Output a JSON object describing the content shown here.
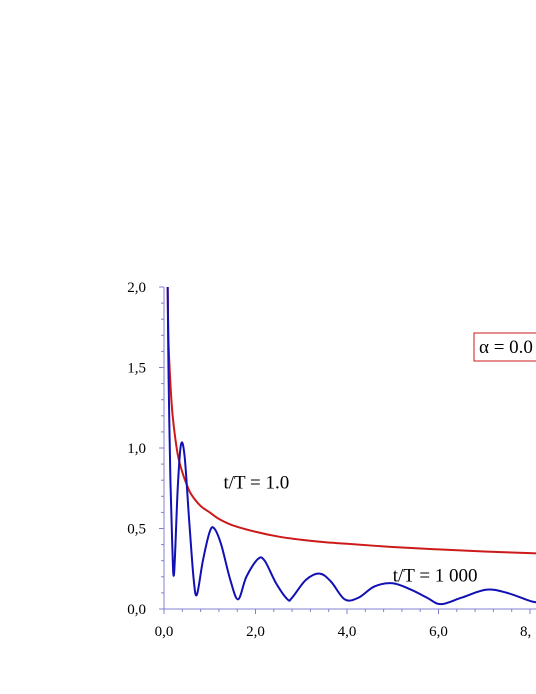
{
  "chart_data": {
    "type": "line",
    "title": "",
    "xlabel": "",
    "ylabel": "",
    "xlim": [
      0,
      8
    ],
    "ylim": [
      0,
      2
    ],
    "x_ticks": [
      "0,0",
      "2,0",
      "4,0",
      "6,0",
      "8,"
    ],
    "y_ticks": [
      "0,0",
      "0,5",
      "1,0",
      "1,5",
      "2,0"
    ],
    "grid": false,
    "legend_box": {
      "text": "α = 0.0",
      "border_color": "#cc1a1a"
    },
    "series": [
      {
        "color": "#cc1a1a",
        "annotation": "t/T = 1.0",
        "x": [
          0.08,
          0.1,
          0.15,
          0.2,
          0.3,
          0.4,
          0.5,
          0.6,
          0.8,
          1.0,
          1.2,
          1.5,
          2.0,
          2.5,
          3.0,
          3.5,
          4.0,
          5.0,
          6.0,
          7.0,
          8.0,
          8.2
        ],
        "y": [
          2.0,
          1.65,
          1.35,
          1.17,
          0.96,
          0.85,
          0.77,
          0.71,
          0.64,
          0.6,
          0.56,
          0.52,
          0.48,
          0.45,
          0.43,
          0.415,
          0.405,
          0.385,
          0.37,
          0.357,
          0.347,
          0.345
        ]
      },
      {
        "color": "#1010b4",
        "annotation": "t/T = 1 000",
        "x": [
          0.08,
          0.1,
          0.14,
          0.18,
          0.22,
          0.3,
          0.37,
          0.45,
          0.55,
          0.65,
          0.72,
          0.85,
          1.0,
          1.1,
          1.25,
          1.45,
          1.62,
          1.8,
          2.05,
          2.2,
          2.45,
          2.7,
          2.8,
          3.1,
          3.4,
          3.65,
          3.95,
          4.25,
          4.6,
          5.0,
          5.4,
          5.75,
          6.05,
          6.5,
          7.05,
          7.5,
          8.0,
          8.2
        ],
        "y": [
          2.0,
          1.45,
          0.8,
          0.4,
          0.22,
          0.75,
          1.02,
          0.95,
          0.55,
          0.18,
          0.09,
          0.3,
          0.48,
          0.5,
          0.4,
          0.18,
          0.06,
          0.2,
          0.31,
          0.3,
          0.16,
          0.06,
          0.07,
          0.18,
          0.22,
          0.17,
          0.06,
          0.07,
          0.14,
          0.16,
          0.12,
          0.07,
          0.03,
          0.07,
          0.12,
          0.1,
          0.05,
          0.04
        ]
      }
    ]
  }
}
